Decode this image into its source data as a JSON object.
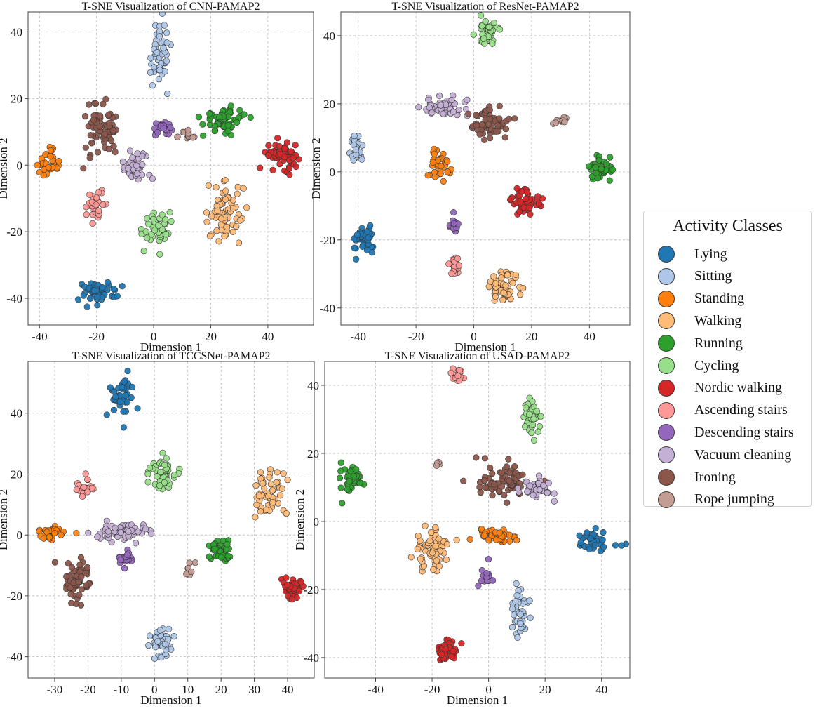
{
  "colors": {
    "Lying": "#1f77b4",
    "Sitting": "#aec7e8",
    "Standing": "#ff7f0e",
    "Walking": "#ffbb78",
    "Running": "#2ca02c",
    "Cycling": "#98df8a",
    "Nordic walking": "#d62728",
    "Ascending stairs": "#ff9896",
    "Descending stairs": "#9467bd",
    "Vacuum cleaning": "#c5b0d5",
    "Ironing": "#8c564b",
    "Rope jumping": "#c49c94"
  },
  "legend": {
    "title": "Activity Classes",
    "items": [
      "Lying",
      "Sitting",
      "Standing",
      "Walking",
      "Running",
      "Cycling",
      "Nordic walking",
      "Ascending stairs",
      "Descending stairs",
      "Vacuum cleaning",
      "Ironing",
      "Rope jumping"
    ]
  },
  "chart_data": [
    {
      "type": "scatter",
      "title": "T-SNE Visualization of CNN-PAMAP2",
      "xlabel": "Dimension 1",
      "ylabel": "Dimension 2",
      "xlim": [
        -44,
        56
      ],
      "ylim": [
        -48,
        46
      ],
      "xticks": [
        -40,
        -20,
        0,
        20,
        40
      ],
      "yticks": [
        -40,
        -20,
        0,
        20,
        40
      ],
      "grid": true,
      "clusters": [
        {
          "label": "Sitting",
          "cx": 2,
          "cy": 33,
          "sx": 2.5,
          "sy": 6,
          "n": 50
        },
        {
          "label": "Running",
          "cx": 25,
          "cy": 14,
          "sx": 4.5,
          "sy": 2.2,
          "n": 60
        },
        {
          "label": "Nordic walking",
          "cx": 45,
          "cy": 3,
          "sx": 3.5,
          "sy": 2.2,
          "n": 60
        },
        {
          "label": "Standing",
          "cx": -37,
          "cy": 0,
          "sx": 2,
          "sy": 2.5,
          "n": 30
        },
        {
          "label": "Ironing",
          "cx": -18,
          "cy": 10,
          "sx": 4,
          "sy": 4.5,
          "n": 70
        },
        {
          "label": "Descending stairs",
          "cx": 3,
          "cy": 11,
          "sx": 1.8,
          "sy": 1.3,
          "n": 20
        },
        {
          "label": "Rope jumping",
          "cx": 12,
          "cy": 9,
          "sx": 2.5,
          "sy": 1,
          "n": 12
        },
        {
          "label": "Vacuum cleaning",
          "cx": -6,
          "cy": 0,
          "sx": 3.5,
          "sy": 2.5,
          "n": 45
        },
        {
          "label": "Ascending stairs",
          "cx": -20,
          "cy": -12,
          "sx": 1.8,
          "sy": 2.5,
          "n": 30
        },
        {
          "label": "Cycling",
          "cx": 1,
          "cy": -19,
          "sx": 2.8,
          "sy": 3.5,
          "n": 45
        },
        {
          "label": "Walking",
          "cx": 25,
          "cy": -14,
          "sx": 3.5,
          "sy": 5,
          "n": 70
        },
        {
          "label": "Lying",
          "cx": -20,
          "cy": -38,
          "sx": 4.5,
          "sy": 2.2,
          "n": 45
        }
      ]
    },
    {
      "type": "scatter",
      "title": "T-SNE Visualization of ResNet-PAMAP2",
      "xlabel": "Dimension 1",
      "ylabel": "Dimension 2",
      "xlim": [
        -46,
        54
      ],
      "ylim": [
        -45,
        47
      ],
      "xticks": [
        -40,
        -20,
        0,
        20,
        40
      ],
      "yticks": [
        -40,
        -20,
        0,
        20,
        40
      ],
      "grid": true,
      "clusters": [
        {
          "label": "Cycling",
          "cx": 5,
          "cy": 41,
          "sx": 2.5,
          "sy": 3,
          "n": 40
        },
        {
          "label": "Vacuum cleaning",
          "cx": -10,
          "cy": 19,
          "sx": 5,
          "sy": 1.5,
          "n": 50
        },
        {
          "label": "Ironing",
          "cx": 6,
          "cy": 14,
          "sx": 4,
          "sy": 3,
          "n": 55
        },
        {
          "label": "Rope jumping",
          "cx": 30,
          "cy": 15,
          "sx": 1.2,
          "sy": 1,
          "n": 10
        },
        {
          "label": "Sitting",
          "cx": -40,
          "cy": 7,
          "sx": 1.5,
          "sy": 2.5,
          "n": 30
        },
        {
          "label": "Standing",
          "cx": -12,
          "cy": 2,
          "sx": 2,
          "sy": 3,
          "n": 35
        },
        {
          "label": "Running",
          "cx": 44,
          "cy": 1,
          "sx": 2.2,
          "sy": 2,
          "n": 55
        },
        {
          "label": "Nordic walking",
          "cx": 18,
          "cy": -9,
          "sx": 2.8,
          "sy": 2.2,
          "n": 55
        },
        {
          "label": "Descending stairs",
          "cx": -7,
          "cy": -16,
          "sx": 1,
          "sy": 1.5,
          "n": 20
        },
        {
          "label": "Lying",
          "cx": -38,
          "cy": -20,
          "sx": 2,
          "sy": 2.5,
          "n": 40
        },
        {
          "label": "Ascending stairs",
          "cx": -7,
          "cy": -28,
          "sx": 1.2,
          "sy": 1.5,
          "n": 20
        },
        {
          "label": "Walking",
          "cx": 10,
          "cy": -34,
          "sx": 3.5,
          "sy": 3,
          "n": 55
        }
      ]
    },
    {
      "type": "scatter",
      "title": "T-SNE Visualization of TCCSNet-PAMAP2",
      "xlabel": "Dimension 1",
      "ylabel": "Dimension 2",
      "xlim": [
        -38,
        48
      ],
      "ylim": [
        -47,
        57
      ],
      "xticks": [
        -30,
        -20,
        -10,
        0,
        10,
        20,
        30,
        40
      ],
      "yticks": [
        -40,
        -20,
        0,
        20,
        40
      ],
      "grid": true,
      "clusters": [
        {
          "label": "Lying",
          "cx": -10,
          "cy": 45,
          "sx": 2,
          "sy": 4,
          "n": 40
        },
        {
          "label": "Cycling",
          "cx": 2,
          "cy": 20,
          "sx": 2.5,
          "sy": 3,
          "n": 50
        },
        {
          "label": "Walking",
          "cx": 34,
          "cy": 13,
          "sx": 2.5,
          "sy": 5,
          "n": 55
        },
        {
          "label": "Ascending stairs",
          "cx": -21,
          "cy": 15,
          "sx": 1.5,
          "sy": 2,
          "n": 25
        },
        {
          "label": "Standing",
          "cx": -31,
          "cy": 1,
          "sx": 3,
          "sy": 1.5,
          "n": 35
        },
        {
          "label": "Vacuum cleaning",
          "cx": -10,
          "cy": 1,
          "sx": 5,
          "sy": 2,
          "n": 60
        },
        {
          "label": "Descending stairs",
          "cx": -9,
          "cy": -8,
          "sx": 1.5,
          "sy": 1.5,
          "n": 20
        },
        {
          "label": "Running",
          "cx": 20,
          "cy": -6,
          "sx": 2,
          "sy": 2.5,
          "n": 45
        },
        {
          "label": "Nordic walking",
          "cx": 41,
          "cy": -17,
          "sx": 2,
          "sy": 2.2,
          "n": 50
        },
        {
          "label": "Ironing",
          "cx": -23,
          "cy": -15,
          "sx": 2.5,
          "sy": 4,
          "n": 55
        },
        {
          "label": "Rope jumping",
          "cx": 10,
          "cy": -11,
          "sx": 1,
          "sy": 1.5,
          "n": 8
        },
        {
          "label": "Sitting",
          "cx": 2,
          "cy": -35,
          "sx": 2.2,
          "sy": 3,
          "n": 40
        }
      ]
    },
    {
      "type": "scatter",
      "title": "T-SNE Visualization of USAD-PAMAP2",
      "xlabel": "Dimension 1",
      "ylabel": "Dimension 2",
      "xlim": [
        -58,
        50
      ],
      "ylim": [
        -46,
        47
      ],
      "xticks": [
        -40,
        -20,
        0,
        20,
        40
      ],
      "yticks": [
        -40,
        -20,
        0,
        20,
        40
      ],
      "grid": true,
      "clusters": [
        {
          "label": "Ascending stairs",
          "cx": -11,
          "cy": 43,
          "sx": 1.2,
          "sy": 1.2,
          "n": 15
        },
        {
          "label": "Cycling",
          "cx": 15,
          "cy": 30,
          "sx": 2,
          "sy": 3.5,
          "n": 35
        },
        {
          "label": "Rope jumping",
          "cx": -18,
          "cy": 17,
          "sx": 0.6,
          "sy": 0.6,
          "n": 5
        },
        {
          "label": "Running",
          "cx": -48,
          "cy": 12,
          "sx": 2.5,
          "sy": 2.5,
          "n": 45
        },
        {
          "label": "Ironing",
          "cx": 5,
          "cy": 12,
          "sx": 6,
          "sy": 3,
          "n": 70
        },
        {
          "label": "Vacuum cleaning",
          "cx": 17,
          "cy": 10,
          "sx": 3,
          "sy": 2,
          "n": 40
        },
        {
          "label": "Standing",
          "cx": 3,
          "cy": -4,
          "sx": 5,
          "sy": 1.2,
          "n": 40
        },
        {
          "label": "Walking",
          "cx": -20,
          "cy": -8,
          "sx": 3.5,
          "sy": 3.5,
          "n": 65
        },
        {
          "label": "Lying",
          "cx": 38,
          "cy": -6,
          "sx": 3.5,
          "sy": 1.8,
          "n": 45
        },
        {
          "label": "Descending stairs",
          "cx": -1,
          "cy": -16,
          "sx": 1.5,
          "sy": 2,
          "n": 18
        },
        {
          "label": "Sitting",
          "cx": 11,
          "cy": -27,
          "sx": 1.8,
          "sy": 5,
          "n": 40
        },
        {
          "label": "Nordic walking",
          "cx": -15,
          "cy": -38,
          "sx": 2.5,
          "sy": 1.8,
          "n": 45
        }
      ]
    }
  ]
}
